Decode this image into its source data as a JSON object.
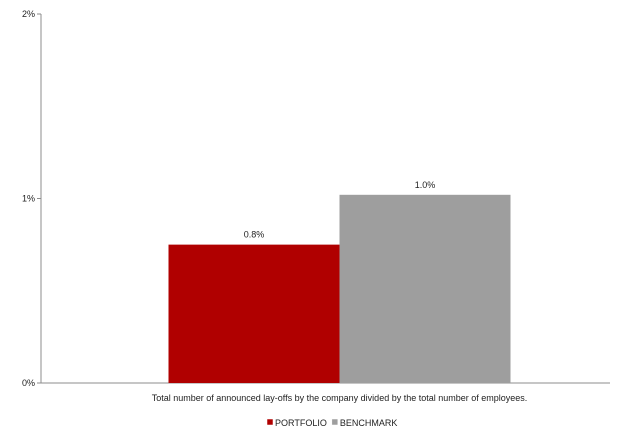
{
  "chart_data": {
    "type": "bar",
    "categories": [
      "Total number of announced lay-offs by the company divided by the total number of employees."
    ],
    "series": [
      {
        "name": "PORTFOLIO",
        "values": [
          0.75
        ],
        "label": "0.8%",
        "color": "#b00000"
      },
      {
        "name": "BENCHMARK",
        "values": [
          1.02
        ],
        "label": "1.0%",
        "color": "#9e9e9e"
      }
    ],
    "ylim": [
      0,
      2
    ],
    "yticks": [
      {
        "value": 0,
        "label": "0%"
      },
      {
        "value": 1,
        "label": "1%"
      },
      {
        "value": 2,
        "label": "2%"
      }
    ],
    "title": "",
    "xlabel": "",
    "ylabel": "",
    "legend_position": "bottom",
    "grid": false
  }
}
